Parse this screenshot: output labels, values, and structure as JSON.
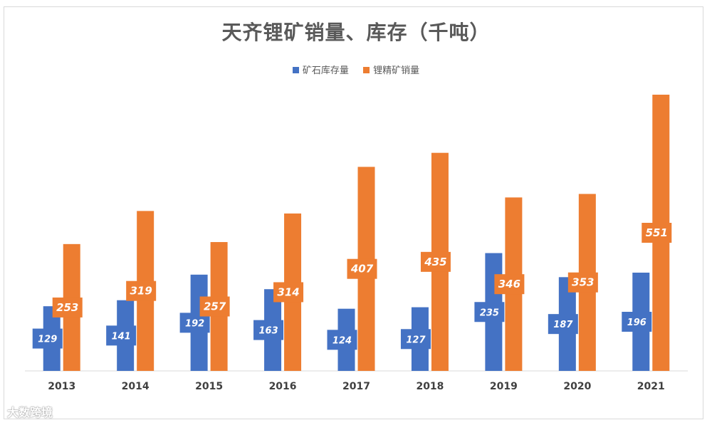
{
  "chart_data": {
    "type": "bar",
    "title": "天齐锂矿销量、库存（千吨）",
    "categories": [
      "2013",
      "2014",
      "2015",
      "2016",
      "2017",
      "2018",
      "2019",
      "2020",
      "2021"
    ],
    "series": [
      {
        "name": "矿石库存量",
        "color": "#4472c4",
        "values": [
          129,
          141,
          192,
          163,
          124,
          127,
          235,
          187,
          196
        ]
      },
      {
        "name": "锂精矿销量",
        "color": "#ed7d31",
        "values": [
          253,
          319,
          257,
          314,
          407,
          435,
          346,
          353,
          551
        ]
      }
    ],
    "ylim": [
      0,
      600
    ],
    "xlabel": "",
    "ylabel": "",
    "legend_position": "top-center",
    "grid": false
  },
  "watermark": "大数跨境"
}
